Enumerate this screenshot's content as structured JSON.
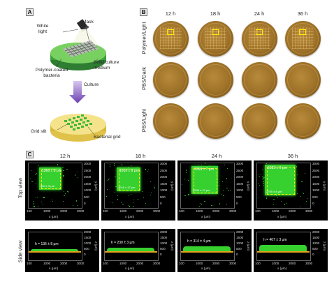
{
  "panel_a": {
    "letter": "A",
    "labels": {
      "white_light": "White\nlight",
      "mask": "Mask",
      "polymer_bacteria": "Polymer-coated\nbacteria",
      "solid_medium": "Solid culture\nmedium",
      "culture": "Culture",
      "grid_slit": "Grid slit",
      "bacterial_grid": "Bacterial grid"
    }
  },
  "panel_b": {
    "letter": "B",
    "times": [
      "12 h",
      "18 h",
      "24 h",
      "36 h"
    ],
    "rows": [
      "Polymer/Light",
      "PBS/Dark",
      "PBS/Light"
    ]
  },
  "panel_c": {
    "letter": "C",
    "times": [
      "12 h",
      "18 h",
      "24 h",
      "36 h"
    ],
    "rows": [
      "Top view",
      "Side view"
    ],
    "top_measurements": [
      {
        "w": "1260 ± 8 μm",
        "h": "960 ± 5 μm"
      },
      {
        "w": "1610 ± 9 μm",
        "h": "1018 ± 17 μm"
      },
      {
        "w": "2056 ± 7 μm",
        "h": "2008 ± 12 μm"
      },
      {
        "w": "3183 ± 9 μm",
        "h": "2759 ± 8 μm"
      }
    ],
    "side_measurements": [
      "h = 136 ± 8 μm",
      "h = 230 ± 3 μm",
      "h = 314 ± 4 μm",
      "h = 407 ± 3 μm"
    ],
    "x_axis_label": "x (μm)",
    "y_axis_label": "y (μm)",
    "z_axis_label": "z (μm)",
    "x_ticks": [
      "100",
      "1000",
      "2000",
      "3000"
    ],
    "y_ticks": [
      "0",
      "500",
      "1000",
      "1500",
      "2000",
      "2500",
      "3000"
    ],
    "z_ticks": [
      "0",
      "500",
      "1000",
      "1500",
      "2000"
    ],
    "colors": {
      "bacteria": "#36d12f",
      "roi": "#ffe800",
      "agar": "#e3a21d"
    }
  }
}
